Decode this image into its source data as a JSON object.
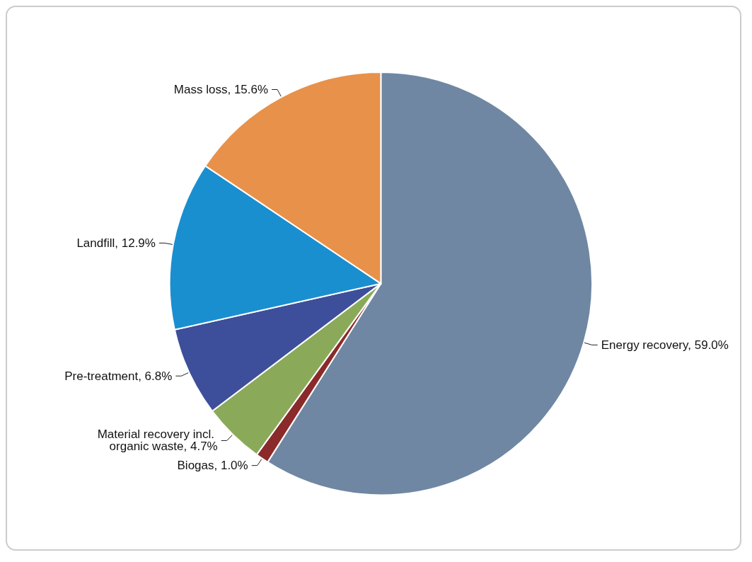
{
  "chart_data": {
    "type": "pie",
    "categories": [
      "Energy recovery",
      "Biogas",
      "Material recovery incl. organic waste",
      "Pre-treatment",
      "Landfill",
      "Mass loss"
    ],
    "values": [
      59.0,
      1.0,
      4.7,
      6.8,
      12.9,
      15.6
    ],
    "value_labels": [
      "59.0%",
      "1.0%",
      "4.7%",
      "6.8%",
      "12.9%",
      "15.6%"
    ],
    "colors": [
      "#6f87a3",
      "#8b2a2a",
      "#8aaa5a",
      "#3d4f9a",
      "#1a8fd0",
      "#e8914a"
    ],
    "legend": false
  }
}
